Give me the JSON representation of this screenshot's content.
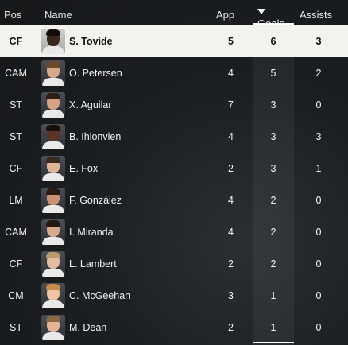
{
  "header": {
    "pos": "Pos",
    "name": "Name",
    "app": "App",
    "goals": "Goals",
    "assists": "Assists",
    "sort_icon": "sort-descending-icon"
  },
  "players": [
    {
      "pos": "CF",
      "name": "S. Tovide",
      "app": "5",
      "goals": "6",
      "assists": "3",
      "skin": "#3a261b",
      "hair": "#140c08",
      "selected": true
    },
    {
      "pos": "CAM",
      "name": "O. Petersen",
      "app": "4",
      "goals": "5",
      "assists": "2",
      "skin": "#d9a98d",
      "hair": "#6b4a2e"
    },
    {
      "pos": "ST",
      "name": "X. Aguilar",
      "app": "7",
      "goals": "3",
      "assists": "0",
      "skin": "#d6a184",
      "hair": "#2c1e14"
    },
    {
      "pos": "ST",
      "name": "B. Ihionvien",
      "app": "4",
      "goals": "3",
      "assists": "3",
      "skin": "#5a3523",
      "hair": "#1a0f0a"
    },
    {
      "pos": "CF",
      "name": "E. Fox",
      "app": "2",
      "goals": "3",
      "assists": "1",
      "skin": "#e0b497",
      "hair": "#3b2b1c"
    },
    {
      "pos": "LM",
      "name": "F. González",
      "app": "4",
      "goals": "2",
      "assists": "0",
      "skin": "#c99274",
      "hair": "#2a1b12"
    },
    {
      "pos": "CAM",
      "name": "I. Miranda",
      "app": "4",
      "goals": "2",
      "assists": "0",
      "skin": "#d8aa8c",
      "hair": "#241912"
    },
    {
      "pos": "CF",
      "name": "L. Lambert",
      "app": "2",
      "goals": "2",
      "assists": "0",
      "skin": "#e6bca0",
      "hair": "#b89a6a"
    },
    {
      "pos": "CM",
      "name": "C. McGeehan",
      "app": "3",
      "goals": "1",
      "assists": "0",
      "skin": "#eec3a6",
      "hair": "#c98a4a"
    },
    {
      "pos": "ST",
      "name": "M. Dean",
      "app": "2",
      "goals": "1",
      "assists": "0",
      "skin": "#e3b598",
      "hair": "#8a6a45"
    }
  ]
}
